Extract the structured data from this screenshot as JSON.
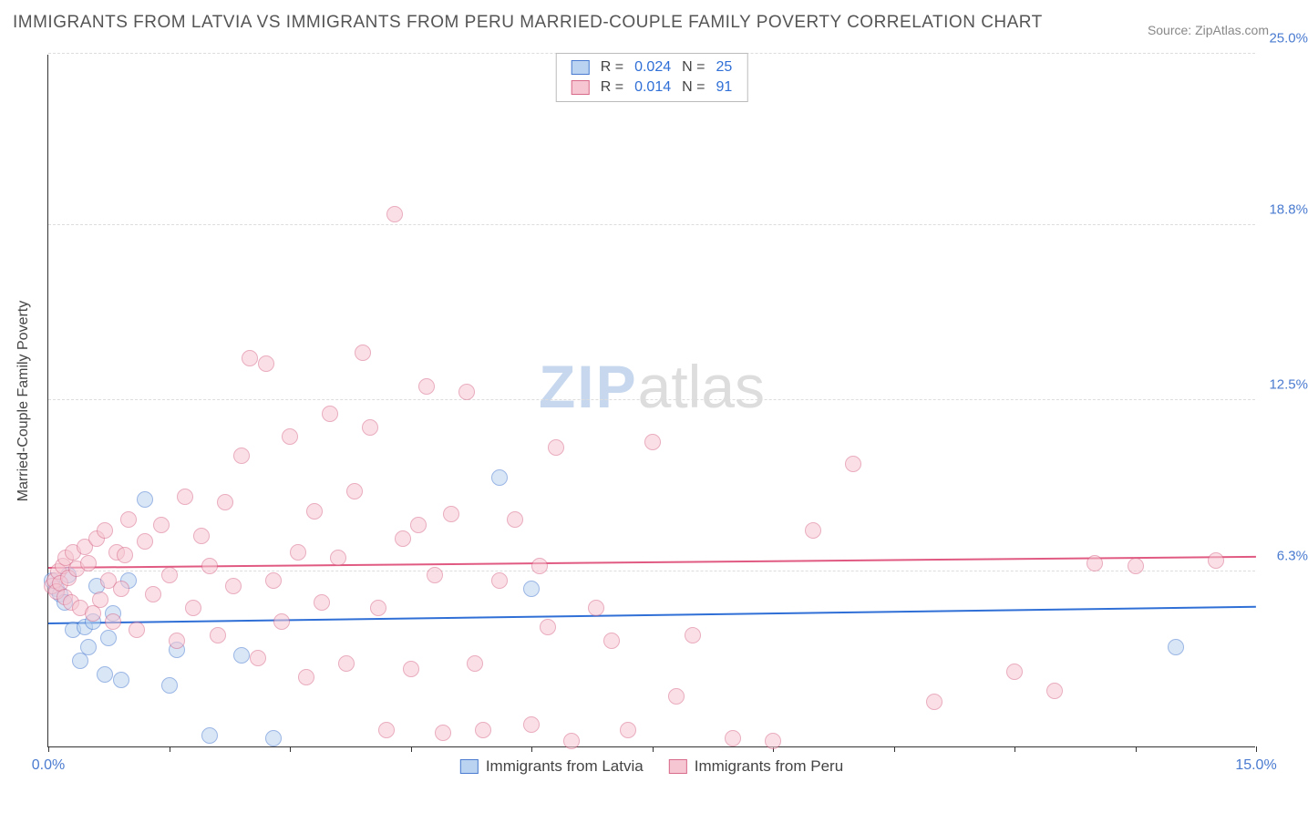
{
  "title": "IMMIGRANTS FROM LATVIA VS IMMIGRANTS FROM PERU MARRIED-COUPLE FAMILY POVERTY CORRELATION CHART",
  "source": "Source: ZipAtlas.com",
  "watermark": {
    "part1": "ZIP",
    "part2": "atlas"
  },
  "chart": {
    "type": "scatter",
    "ylabel": "Married-Couple Family Poverty",
    "background_color": "#ffffff",
    "grid_color": "#dddddd",
    "axis_color": "#333333",
    "xlim": [
      0.0,
      15.0
    ],
    "ylim": [
      0.0,
      25.0
    ],
    "xticks": [
      0.0,
      1.5,
      3.0,
      4.5,
      6.0,
      7.5,
      9.0,
      10.5,
      12.0,
      13.5,
      15.0
    ],
    "xtick_labels": {
      "0": "0.0%",
      "15": "15.0%"
    },
    "xtick_label_color": "#4a7bd0",
    "yticks": [
      {
        "v": 6.3,
        "label": "6.3%",
        "color": "#4a7bd0"
      },
      {
        "v": 12.5,
        "label": "12.5%",
        "color": "#4a7bd0"
      },
      {
        "v": 18.8,
        "label": "18.8%",
        "color": "#4a7bd0"
      },
      {
        "v": 25.0,
        "label": "25.0%",
        "color": "#4a7bd0"
      }
    ],
    "marker_radius": 9,
    "marker_opacity": 0.55,
    "series": [
      {
        "name": "Immigrants from Latvia",
        "fill": "#b9d3f0",
        "stroke": "#4a7bd0",
        "trend_color": "#2f6fd6",
        "R": "0.024",
        "N": "25",
        "trend": {
          "y_at_xmin": 4.4,
          "y_at_xmax": 5.0
        },
        "points": [
          [
            0.05,
            6.0
          ],
          [
            0.1,
            5.7
          ],
          [
            0.15,
            5.5
          ],
          [
            0.2,
            5.2
          ],
          [
            0.25,
            6.2
          ],
          [
            0.3,
            4.2
          ],
          [
            0.4,
            3.1
          ],
          [
            0.45,
            4.3
          ],
          [
            0.5,
            3.6
          ],
          [
            0.55,
            4.5
          ],
          [
            0.6,
            5.8
          ],
          [
            0.7,
            2.6
          ],
          [
            0.75,
            3.9
          ],
          [
            0.8,
            4.8
          ],
          [
            0.9,
            2.4
          ],
          [
            1.0,
            6.0
          ],
          [
            1.2,
            8.9
          ],
          [
            1.5,
            2.2
          ],
          [
            1.6,
            3.5
          ],
          [
            2.0,
            0.4
          ],
          [
            2.4,
            3.3
          ],
          [
            2.8,
            0.3
          ],
          [
            5.6,
            9.7
          ],
          [
            6.0,
            5.7
          ],
          [
            14.0,
            3.6
          ]
        ]
      },
      {
        "name": "Immigrants from Peru",
        "fill": "#f6c7d3",
        "stroke": "#d86a8a",
        "trend_color": "#e05a82",
        "R": "0.014",
        "N": "91",
        "trend": {
          "y_at_xmin": 6.4,
          "y_at_xmax": 6.8
        },
        "points": [
          [
            0.05,
            5.8
          ],
          [
            0.08,
            6.0
          ],
          [
            0.1,
            5.6
          ],
          [
            0.12,
            6.3
          ],
          [
            0.15,
            5.9
          ],
          [
            0.18,
            6.5
          ],
          [
            0.2,
            5.4
          ],
          [
            0.22,
            6.8
          ],
          [
            0.25,
            6.1
          ],
          [
            0.28,
            5.2
          ],
          [
            0.3,
            7.0
          ],
          [
            0.35,
            6.4
          ],
          [
            0.4,
            5.0
          ],
          [
            0.45,
            7.2
          ],
          [
            0.5,
            6.6
          ],
          [
            0.55,
            4.8
          ],
          [
            0.6,
            7.5
          ],
          [
            0.65,
            5.3
          ],
          [
            0.7,
            7.8
          ],
          [
            0.75,
            6.0
          ],
          [
            0.8,
            4.5
          ],
          [
            0.85,
            7.0
          ],
          [
            0.9,
            5.7
          ],
          [
            0.95,
            6.9
          ],
          [
            1.0,
            8.2
          ],
          [
            1.1,
            4.2
          ],
          [
            1.2,
            7.4
          ],
          [
            1.3,
            5.5
          ],
          [
            1.4,
            8.0
          ],
          [
            1.5,
            6.2
          ],
          [
            1.6,
            3.8
          ],
          [
            1.7,
            9.0
          ],
          [
            1.8,
            5.0
          ],
          [
            1.9,
            7.6
          ],
          [
            2.0,
            6.5
          ],
          [
            2.1,
            4.0
          ],
          [
            2.2,
            8.8
          ],
          [
            2.3,
            5.8
          ],
          [
            2.4,
            10.5
          ],
          [
            2.5,
            14.0
          ],
          [
            2.6,
            3.2
          ],
          [
            2.7,
            13.8
          ],
          [
            2.8,
            6.0
          ],
          [
            2.9,
            4.5
          ],
          [
            3.0,
            11.2
          ],
          [
            3.1,
            7.0
          ],
          [
            3.2,
            2.5
          ],
          [
            3.3,
            8.5
          ],
          [
            3.4,
            5.2
          ],
          [
            3.5,
            12.0
          ],
          [
            3.6,
            6.8
          ],
          [
            3.7,
            3.0
          ],
          [
            3.8,
            9.2
          ],
          [
            3.9,
            14.2
          ],
          [
            4.0,
            11.5
          ],
          [
            4.1,
            5.0
          ],
          [
            4.2,
            0.6
          ],
          [
            4.3,
            19.2
          ],
          [
            4.4,
            7.5
          ],
          [
            4.5,
            2.8
          ],
          [
            4.6,
            8.0
          ],
          [
            4.7,
            13.0
          ],
          [
            4.8,
            6.2
          ],
          [
            4.9,
            0.5
          ],
          [
            5.0,
            8.4
          ],
          [
            5.2,
            12.8
          ],
          [
            5.3,
            3.0
          ],
          [
            5.4,
            0.6
          ],
          [
            5.6,
            6.0
          ],
          [
            5.8,
            8.2
          ],
          [
            6.0,
            0.8
          ],
          [
            6.1,
            6.5
          ],
          [
            6.2,
            4.3
          ],
          [
            6.3,
            10.8
          ],
          [
            6.5,
            0.2
          ],
          [
            6.8,
            5.0
          ],
          [
            7.0,
            3.8
          ],
          [
            7.2,
            0.6
          ],
          [
            7.5,
            11.0
          ],
          [
            7.8,
            1.8
          ],
          [
            8.0,
            4.0
          ],
          [
            8.5,
            0.3
          ],
          [
            9.0,
            0.2
          ],
          [
            9.5,
            7.8
          ],
          [
            10.0,
            10.2
          ],
          [
            11.0,
            1.6
          ],
          [
            12.0,
            2.7
          ],
          [
            12.5,
            2.0
          ],
          [
            13.0,
            6.6
          ],
          [
            13.5,
            6.5
          ],
          [
            14.5,
            6.7
          ]
        ]
      }
    ],
    "legend_top": {
      "R_label": "R =",
      "N_label": "N =",
      "value_color": "#2f6fd6",
      "label_color": "#444444"
    },
    "legend_bottom": {
      "items": [
        "Immigrants from Latvia",
        "Immigrants from Peru"
      ]
    }
  }
}
